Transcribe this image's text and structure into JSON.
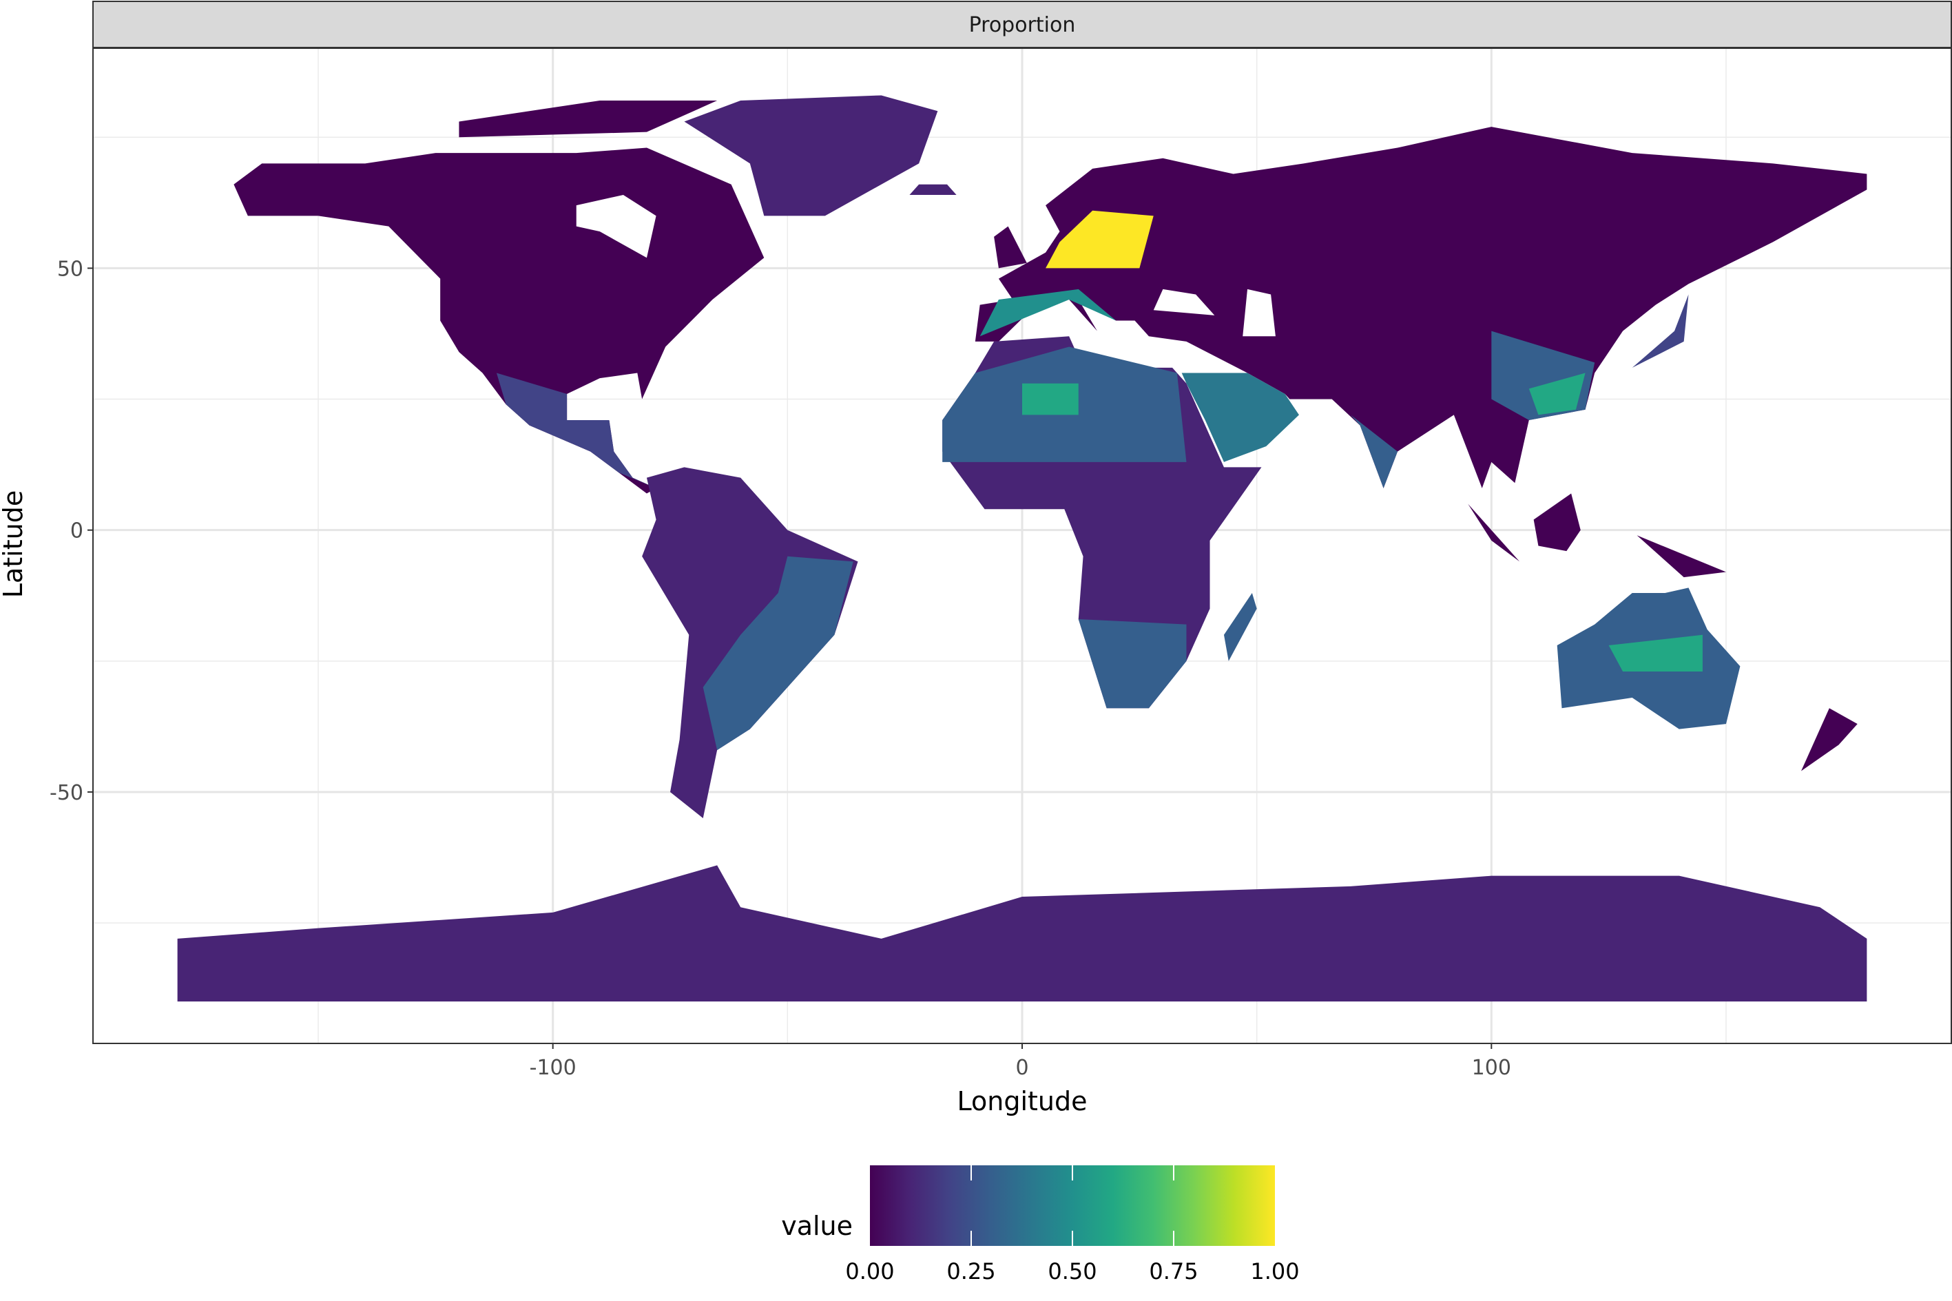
{
  "chart_data": {
    "type": "heatmap",
    "subtype": "raster-map",
    "facet_label": "Proportion",
    "xlabel": "Longitude",
    "ylabel": "Latitude",
    "x_ticks": [
      -100,
      0,
      100
    ],
    "x_tick_labels": [
      "-100",
      "0",
      "100"
    ],
    "y_ticks": [
      -50,
      0,
      50
    ],
    "y_tick_labels": [
      "-50",
      "0",
      "50"
    ],
    "xlim": [
      -198,
      198
    ],
    "ylim": [
      -98,
      92
    ],
    "grid": true,
    "legend": {
      "title": "value",
      "position": "bottom",
      "type": "colorbar",
      "palette": "viridis",
      "range": [
        0,
        1
      ],
      "ticks": [
        0,
        0.25,
        0.5,
        0.75,
        1
      ],
      "tick_labels": [
        "0.00",
        "0.25",
        "0.50",
        "0.75",
        "1.00"
      ],
      "colors": [
        "#440154",
        "#482475",
        "#414487",
        "#355f8d",
        "#2a788e",
        "#21908d",
        "#22a884",
        "#42be71",
        "#7ad151",
        "#bddf26",
        "#fde725"
      ]
    }
  }
}
